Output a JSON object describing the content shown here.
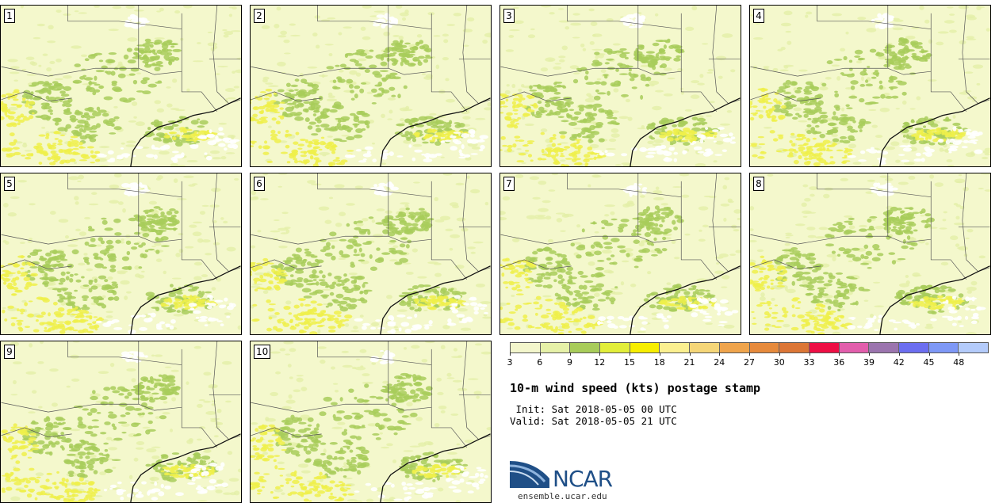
{
  "panels": [
    "1",
    "2",
    "3",
    "4",
    "5",
    "6",
    "7",
    "8",
    "9",
    "10"
  ],
  "legend": {
    "ticks": [
      "3",
      "6",
      "9",
      "12",
      "15",
      "18",
      "21",
      "24",
      "27",
      "30",
      "33",
      "36",
      "39",
      "42",
      "45",
      "48"
    ],
    "colors": [
      "#f3f6cc",
      "#e6f1a8",
      "#a8cc5a",
      "#e2ee3a",
      "#f7ee00",
      "#fbf090",
      "#f5d678",
      "#efa44c",
      "#e68a3c",
      "#dc7636",
      "#ee0f44",
      "#e25eac",
      "#9b74ae",
      "#6c6ef0",
      "#7e98f6",
      "#b4cbfa"
    ]
  },
  "map_colors": {
    "base": "#f4f8cc",
    "light": "#e4efa8",
    "green": "#a8cc5a",
    "yellow": "#eef04a",
    "white": "#ffffff",
    "boundary": "#555555",
    "coast": "#111111"
  },
  "title": "10-m wind speed (kts) postage stamp",
  "init": " Init: Sat 2018-05-05 00 UTC",
  "valid": "Valid: Sat 2018-05-05 21 UTC",
  "logo": {
    "text": "NCAR",
    "url": "ensemble.ucar.edu",
    "color": "#1f4f87"
  }
}
